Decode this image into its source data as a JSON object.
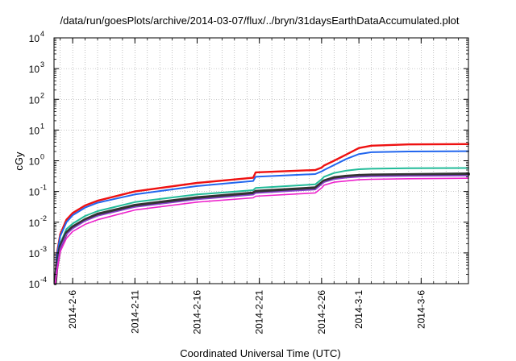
{
  "chart_data": {
    "type": "line",
    "title": "/data/run/goesPlots/archive/2014-03-07/flux/../bryn/31daysEarthDataAccumulated.plot",
    "xlabel": "Coordinated Universal Time (UTC)",
    "ylabel": "cGy",
    "yscale": "log",
    "ylim": [
      0.0001,
      10000
    ],
    "x_range_days_since_2014_02_05": [
      -0.5,
      32.8
    ],
    "x_start_date": "2014-02-05",
    "grid": true,
    "legend": "none",
    "x_ticks": [
      {
        "label": "2014-2-6",
        "day": 1
      },
      {
        "label": "2014-2-11",
        "day": 6
      },
      {
        "label": "2014-2-16",
        "day": 11
      },
      {
        "label": "2014-2-21",
        "day": 16
      },
      {
        "label": "2014-2-26",
        "day": 21
      },
      {
        "label": "2014-3-1",
        "day": 24
      },
      {
        "label": "2014-3-6",
        "day": 29
      }
    ],
    "y_ticks": [
      {
        "base": "10",
        "exp": "-4",
        "value": 0.0001
      },
      {
        "base": "10",
        "exp": "-3",
        "value": 0.001
      },
      {
        "base": "10",
        "exp": "-2",
        "value": 0.01
      },
      {
        "base": "10",
        "exp": "-1",
        "value": 0.1
      },
      {
        "base": "10",
        "exp": "0",
        "value": 1
      },
      {
        "base": "10",
        "exp": "1",
        "value": 10
      },
      {
        "base": "10",
        "exp": "2",
        "value": 100
      },
      {
        "base": "10",
        "exp": "3",
        "value": 1000
      },
      {
        "base": "10",
        "exp": "4",
        "value": 10000
      }
    ],
    "series": [
      {
        "color": "#ee1111",
        "width": 2.4,
        "x": [
          -0.4,
          -0.3,
          0,
          0.5,
          1,
          2,
          3,
          6,
          11,
          15.5,
          15.7,
          20.5,
          21,
          21.2,
          22,
          23,
          24,
          25,
          28,
          32.8
        ],
        "y": [
          0.0001,
          0.0008,
          0.004,
          0.012,
          0.02,
          0.035,
          0.05,
          0.1,
          0.19,
          0.28,
          0.42,
          0.5,
          0.6,
          0.7,
          1.0,
          1.6,
          2.6,
          3.1,
          3.4,
          3.5
        ]
      },
      {
        "color": "#2266ee",
        "width": 2.0,
        "x": [
          -0.4,
          -0.3,
          0,
          0.5,
          1,
          2,
          3,
          6,
          11,
          15.5,
          15.7,
          20.5,
          21,
          21.2,
          22,
          23,
          24,
          25,
          28,
          32.8
        ],
        "y": [
          0.0001,
          0.0007,
          0.0035,
          0.01,
          0.017,
          0.03,
          0.043,
          0.08,
          0.15,
          0.22,
          0.3,
          0.37,
          0.45,
          0.5,
          0.72,
          1.15,
          1.65,
          1.9,
          2.0,
          2.05
        ]
      },
      {
        "color": "#22bb99",
        "width": 2.0,
        "x": [
          -0.4,
          -0.3,
          0,
          0.5,
          1,
          2,
          3,
          6,
          11,
          15.5,
          15.7,
          20.5,
          21,
          21.2,
          22,
          23,
          24,
          25,
          28,
          32.8
        ],
        "y": [
          0.0001,
          0.0004,
          0.002,
          0.006,
          0.009,
          0.016,
          0.023,
          0.045,
          0.08,
          0.11,
          0.13,
          0.17,
          0.25,
          0.3,
          0.4,
          0.48,
          0.53,
          0.55,
          0.57,
          0.58
        ]
      },
      {
        "color": "#333333",
        "width": 4.0,
        "x": [
          -0.4,
          -0.3,
          0,
          0.5,
          1,
          2,
          3,
          6,
          11,
          15.5,
          15.7,
          20.5,
          21,
          21.2,
          22,
          23,
          24,
          25,
          28,
          32.8
        ],
        "y": [
          0.0001,
          0.0003,
          0.0016,
          0.0045,
          0.007,
          0.012,
          0.018,
          0.035,
          0.062,
          0.088,
          0.1,
          0.13,
          0.19,
          0.22,
          0.28,
          0.31,
          0.33,
          0.34,
          0.35,
          0.37
        ]
      },
      {
        "color": "#8844cc",
        "width": 1.6,
        "x": [
          -0.4,
          -0.3,
          0,
          0.5,
          1,
          2,
          3,
          6,
          11,
          15.5,
          15.7,
          20.5,
          21,
          21.2,
          22,
          23,
          24,
          25,
          28,
          32.8
        ],
        "y": [
          0.0001,
          0.00028,
          0.0014,
          0.004,
          0.0062,
          0.011,
          0.016,
          0.031,
          0.055,
          0.078,
          0.088,
          0.115,
          0.17,
          0.2,
          0.25,
          0.28,
          0.3,
          0.31,
          0.32,
          0.33
        ]
      },
      {
        "color": "#ee22cc",
        "width": 1.6,
        "x": [
          -0.4,
          -0.3,
          0,
          0.5,
          1,
          2,
          3,
          6,
          11,
          15.5,
          15.7,
          20.5,
          21,
          21.2,
          22,
          23,
          24,
          25,
          28,
          32.8
        ],
        "y": [
          0.0001,
          0.0002,
          0.0011,
          0.003,
          0.005,
          0.0085,
          0.012,
          0.025,
          0.045,
          0.062,
          0.07,
          0.09,
          0.13,
          0.16,
          0.2,
          0.22,
          0.24,
          0.25,
          0.26,
          0.27
        ]
      }
    ]
  }
}
